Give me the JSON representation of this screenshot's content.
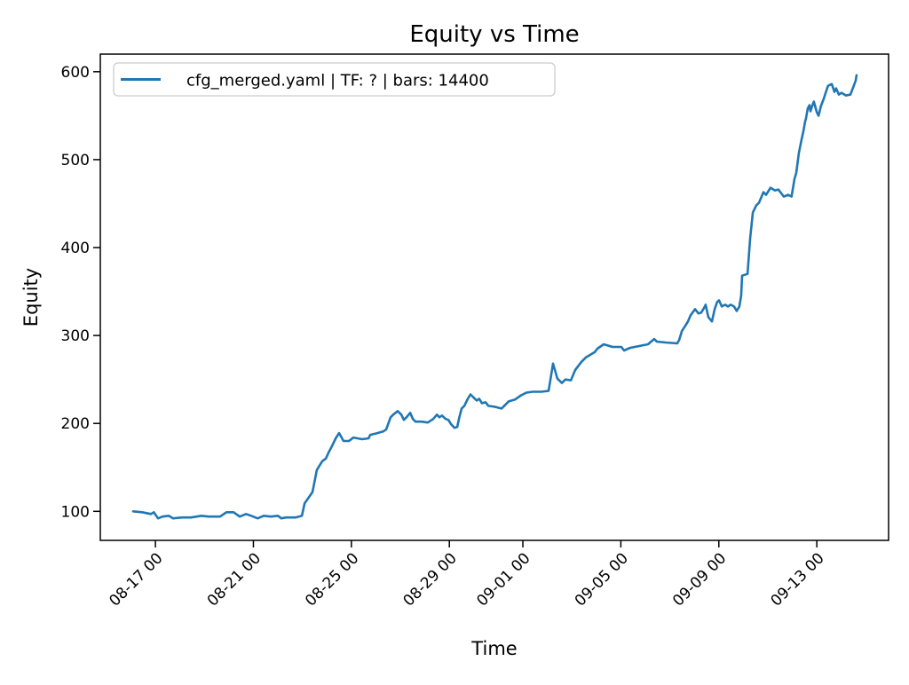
{
  "chart_data": {
    "type": "line",
    "title": "Equity vs Time",
    "xlabel": "Time",
    "ylabel": "Equity",
    "legend": [
      "cfg_merged.yaml | TF: ? | bars: 14400"
    ],
    "legend_position": "upper left",
    "grid": false,
    "line_color": "#1f77b4",
    "axis_color": "#000000",
    "legend_border_color": "#cccccc",
    "x_axis_note": "x values are fractional days relative to the 08-17 00 tick",
    "x_ticks": [
      {
        "t": 0,
        "label": "08-17 00"
      },
      {
        "t": 4,
        "label": "08-21 00"
      },
      {
        "t": 8,
        "label": "08-25 00"
      },
      {
        "t": 12,
        "label": "08-29 00"
      },
      {
        "t": 15,
        "label": "09-01 00"
      },
      {
        "t": 19,
        "label": "09-05 00"
      },
      {
        "t": 23,
        "label": "09-09 00"
      },
      {
        "t": 27,
        "label": "09-13 00"
      }
    ],
    "y_ticks": [
      100,
      200,
      300,
      400,
      500,
      600
    ],
    "xlim": [
      -2.25,
      29.93
    ],
    "ylim": [
      67,
      620
    ],
    "series": [
      {
        "name": "cfg_merged.yaml | TF: ? | bars: 14400",
        "x": [
          -0.91,
          -0.54,
          -0.18,
          -0.07,
          0.11,
          0.29,
          0.54,
          0.72,
          1.09,
          1.45,
          1.88,
          2.17,
          2.64,
          2.9,
          3.19,
          3.44,
          3.7,
          3.91,
          4.17,
          4.42,
          4.71,
          5.0,
          5.14,
          5.33,
          5.72,
          5.98,
          6.09,
          6.34,
          6.41,
          6.49,
          6.59,
          6.81,
          6.96,
          7.07,
          7.17,
          7.36,
          7.5,
          7.68,
          7.9,
          8.08,
          8.44,
          8.7,
          8.77,
          9.06,
          9.31,
          9.42,
          9.6,
          9.71,
          9.89,
          10.04,
          10.14,
          10.25,
          10.4,
          10.51,
          10.62,
          10.87,
          11.12,
          11.34,
          11.49,
          11.59,
          11.7,
          11.85,
          11.96,
          12.07,
          12.21,
          12.32,
          12.39,
          12.5,
          12.61,
          12.75,
          12.86,
          12.97,
          13.12,
          13.22,
          13.33,
          13.48,
          13.59,
          13.84,
          14.13,
          14.42,
          14.67,
          14.93,
          15.14,
          15.4,
          15.76,
          16.05,
          16.23,
          16.41,
          16.59,
          16.74,
          16.96,
          17.14,
          17.39,
          17.57,
          17.75,
          17.93,
          18.04,
          18.3,
          18.66,
          19.02,
          19.13,
          19.38,
          19.75,
          20.11,
          20.36,
          20.47,
          20.83,
          21.3,
          21.38,
          21.49,
          21.63,
          21.74,
          21.85,
          22.03,
          22.17,
          22.28,
          22.39,
          22.46,
          22.57,
          22.72,
          22.83,
          22.93,
          23.01,
          23.12,
          23.26,
          23.37,
          23.48,
          23.62,
          23.73,
          23.84,
          23.91,
          23.95,
          24.17,
          24.28,
          24.39,
          24.53,
          24.64,
          24.82,
          24.93,
          25.11,
          25.29,
          25.43,
          25.65,
          25.83,
          25.97,
          26.09,
          26.16,
          26.27,
          26.38,
          26.45,
          26.52,
          26.56,
          26.63,
          26.7,
          26.74,
          26.81,
          26.88,
          27.0,
          27.07,
          27.17,
          27.28,
          27.36,
          27.46,
          27.61,
          27.72,
          27.79,
          27.9,
          28.01,
          28.19,
          28.37,
          28.51,
          28.59,
          28.62
        ],
        "y": [
          100,
          99,
          97,
          99,
          92,
          94,
          95,
          92,
          93,
          93,
          95,
          94,
          94,
          99,
          99,
          94,
          97,
          95,
          92,
          95,
          94,
          95,
          92,
          93,
          93,
          95,
          109,
          119,
          122,
          133,
          147,
          157,
          160,
          167,
          172,
          183,
          189,
          180,
          180,
          184,
          182,
          183,
          187,
          189,
          191,
          193,
          207,
          210,
          214,
          210,
          204,
          207,
          212,
          205,
          202,
          202,
          201,
          205,
          210,
          207,
          209,
          205,
          204,
          199,
          195,
          196,
          205,
          217,
          220,
          228,
          233,
          230,
          226,
          228,
          223,
          224,
          220,
          219,
          217,
          225,
          227,
          232,
          235,
          236,
          236,
          237,
          268,
          251,
          246,
          250,
          249,
          261,
          270,
          275,
          278,
          281,
          285,
          290,
          287,
          287,
          283,
          286,
          288,
          290,
          296,
          293,
          292,
          291,
          295,
          305,
          311,
          316,
          323,
          330,
          325,
          326,
          331,
          335,
          321,
          316,
          330,
          338,
          340,
          333,
          335,
          333,
          335,
          333,
          328,
          333,
          345,
          368,
          370,
          411,
          440,
          448,
          451,
          463,
          460,
          468,
          465,
          466,
          458,
          460,
          458,
          478,
          485,
          508,
          523,
          532,
          543,
          547,
          558,
          562,
          555,
          561,
          566,
          554,
          550,
          561,
          569,
          576,
          584,
          586,
          577,
          581,
          574,
          576,
          573,
          574,
          584,
          590,
          596
        ]
      }
    ]
  }
}
